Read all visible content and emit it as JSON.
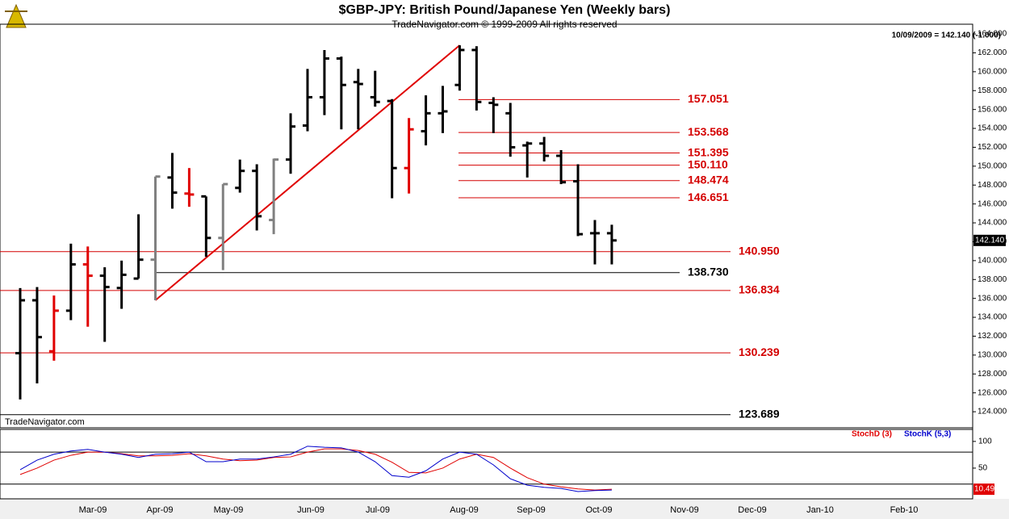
{
  "chart_data": [
    {
      "type": "ohlc",
      "title": "$GBP-JPY:  British Pound/Japanese Yen  (Weekly bars)",
      "subtitle": "TradeNavigator.com © 1999-2009 All rights reserved",
      "header_note": "10/09/2009 = 142.140 (-1.000)",
      "source": "TradeNavigator.com",
      "last_price_label": "142.140",
      "x_labels": [
        "Mar-09",
        "Apr-09",
        "May-09",
        "Jun-09",
        "Jul-09",
        "Aug-09",
        "Sep-09",
        "Oct-09",
        "Nov-09",
        "Dec-09",
        "Jan-10",
        "Feb-10"
      ],
      "categories": [
        null,
        null,
        null,
        null,
        null,
        null,
        null,
        null,
        null,
        null,
        null,
        null,
        null,
        null,
        null,
        null,
        null,
        null,
        null,
        null,
        null,
        null,
        null,
        null,
        null,
        null,
        null,
        null,
        null,
        null,
        null,
        null,
        null,
        null,
        null,
        null
      ],
      "series": [
        {
          "open": [
            130.2,
            135.8,
            130.4,
            134.7,
            139.6,
            138.4,
            137.1,
            138.1,
            140.1,
            148.8,
            147.1,
            146.8,
            142.4,
            147.7,
            149.5,
            144.3,
            150.7,
            154.3,
            157.3,
            161.4,
            158.9,
            157.3,
            156.9,
            149.8,
            153.7,
            155.6,
            158.6,
            162.3,
            156.7,
            155.6,
            152.2,
            152.4,
            151.1,
            148.4,
            142.9,
            142.9
          ],
          "high": [
            137.1,
            137.2,
            136.3,
            141.8,
            141.5,
            139.3,
            140.0,
            144.9,
            148.9,
            151.4,
            149.8,
            146.8,
            148.1,
            150.7,
            150.2,
            150.8,
            155.6,
            160.3,
            162.3,
            161.6,
            160.3,
            160.1,
            157.1,
            155.1,
            157.5,
            158.5,
            162.8,
            162.7,
            157.3,
            156.7,
            152.6,
            153.1,
            151.7,
            150.2,
            144.3,
            143.8
          ],
          "low": [
            125.3,
            127.0,
            129.4,
            133.7,
            133.0,
            131.4,
            134.9,
            138.1,
            135.8,
            145.5,
            145.7,
            140.4,
            139.0,
            147.2,
            143.2,
            142.8,
            149.2,
            153.7,
            155.4,
            153.9,
            153.9,
            156.3,
            146.6,
            147.1,
            152.2,
            153.5,
            158.0,
            155.9,
            153.5,
            151.0,
            148.8,
            150.5,
            148.1,
            142.6,
            139.6,
            139.6
          ],
          "close": [
            135.8,
            131.9,
            134.7,
            139.6,
            138.4,
            137.2,
            138.5,
            140.1,
            148.9,
            147.2,
            147.0,
            142.4,
            148.1,
            149.5,
            144.7,
            150.7,
            154.2,
            157.3,
            161.4,
            158.6,
            158.7,
            156.8,
            149.8,
            153.9,
            155.6,
            155.8,
            162.3,
            156.8,
            156.5,
            152.0,
            152.4,
            151.1,
            148.3,
            142.8,
            142.9,
            142.14
          ],
          "colors": [
            "#000000",
            "#000000",
            "#e00000",
            "#000000",
            "#e00000",
            "#000000",
            "#000000",
            "#000000",
            "#808080",
            "#000000",
            "#e00000",
            "#000000",
            "#808080",
            "#000000",
            "#000000",
            "#808080",
            "#000000",
            "#000000",
            "#000000",
            "#000000",
            "#000000",
            "#000000",
            "#000000",
            "#e00000",
            "#000000",
            "#000000",
            "#000000",
            "#000000",
            "#000000",
            "#000000",
            "#000000",
            "#000000",
            "#000000",
            "#000000",
            "#000000",
            "#000000"
          ]
        }
      ],
      "trend_line": {
        "color": "#e00000",
        "values": [
          135.8,
          162.8
        ]
      },
      "levels": {
        "values": [
          157.051,
          153.568,
          151.395,
          150.11,
          148.474,
          146.651,
          140.95,
          138.73,
          136.834,
          130.239,
          123.689
        ],
        "value_labels": [
          "157.051",
          "153.568",
          "151.395",
          "150.110",
          "148.474",
          "146.651",
          "140.950",
          "138.730",
          "136.834",
          "130.239",
          "123.689"
        ],
        "colors": [
          "#d40000",
          "#d40000",
          "#d40000",
          "#d40000",
          "#d40000",
          "#d40000",
          "#d40000",
          "#000000",
          "#d40000",
          "#d40000",
          "#000000"
        ]
      },
      "ylim": [
        122.3,
        165.03
      ],
      "yticks": [
        {
          "value": 124,
          "label": "124.000"
        },
        {
          "value": 126,
          "label": "126.000"
        },
        {
          "value": 128,
          "label": "128.000"
        },
        {
          "value": 130,
          "label": "130.000"
        },
        {
          "value": 132,
          "label": "132.000"
        },
        {
          "value": 134,
          "label": "134.000"
        },
        {
          "value": 136,
          "label": "136.000"
        },
        {
          "value": 138,
          "label": "138.000"
        },
        {
          "value": 140,
          "label": "140.000"
        },
        {
          "value": 142,
          "label": "142.000"
        },
        {
          "value": 144,
          "label": "144.000"
        },
        {
          "value": 146,
          "label": "146.000"
        },
        {
          "value": 148,
          "label": "148.000"
        },
        {
          "value": 150,
          "label": "150.000"
        },
        {
          "value": 152,
          "label": "152.000"
        },
        {
          "value": 154,
          "label": "154.000"
        },
        {
          "value": 156,
          "label": "156.000"
        },
        {
          "value": 158,
          "label": "158.000"
        },
        {
          "value": 160,
          "label": "160.000"
        },
        {
          "value": 162,
          "label": "162.000"
        },
        {
          "value": 164,
          "label": "164.000"
        }
      ]
    },
    {
      "type": "line",
      "categories": [
        null,
        null,
        null,
        null,
        null,
        null,
        null,
        null,
        null,
        null,
        null,
        null,
        null,
        null,
        null,
        null,
        null,
        null,
        null,
        null,
        null,
        null,
        null,
        null,
        null,
        null,
        null,
        null,
        null,
        null,
        null,
        null,
        null,
        null,
        null,
        null
      ],
      "series": [
        {
          "name": "StochD (3)",
          "color": "#e00000",
          "values": [
            38,
            50,
            65,
            74,
            80,
            80,
            77,
            73,
            73,
            74,
            77,
            73,
            67,
            64,
            65,
            70,
            71,
            80,
            86,
            86,
            83,
            76,
            61,
            42,
            41,
            50,
            67,
            76,
            70,
            50,
            32,
            20,
            15,
            11,
            9,
            10.49
          ]
        },
        {
          "name": "StochK (5,3)",
          "color": "#0000cc",
          "values": [
            47,
            65,
            76,
            82,
            85,
            80,
            76,
            70,
            76,
            77,
            80,
            62,
            62,
            67,
            67,
            71,
            76,
            91,
            89,
            88,
            80,
            62,
            36,
            33,
            45,
            67,
            80,
            76,
            56,
            30,
            18,
            14,
            12,
            6,
            8,
            9
          ]
        }
      ],
      "ref_lines": [
        80,
        20
      ],
      "ylim": [
        -3,
        121
      ],
      "yticks": [
        100,
        50
      ]
    }
  ]
}
